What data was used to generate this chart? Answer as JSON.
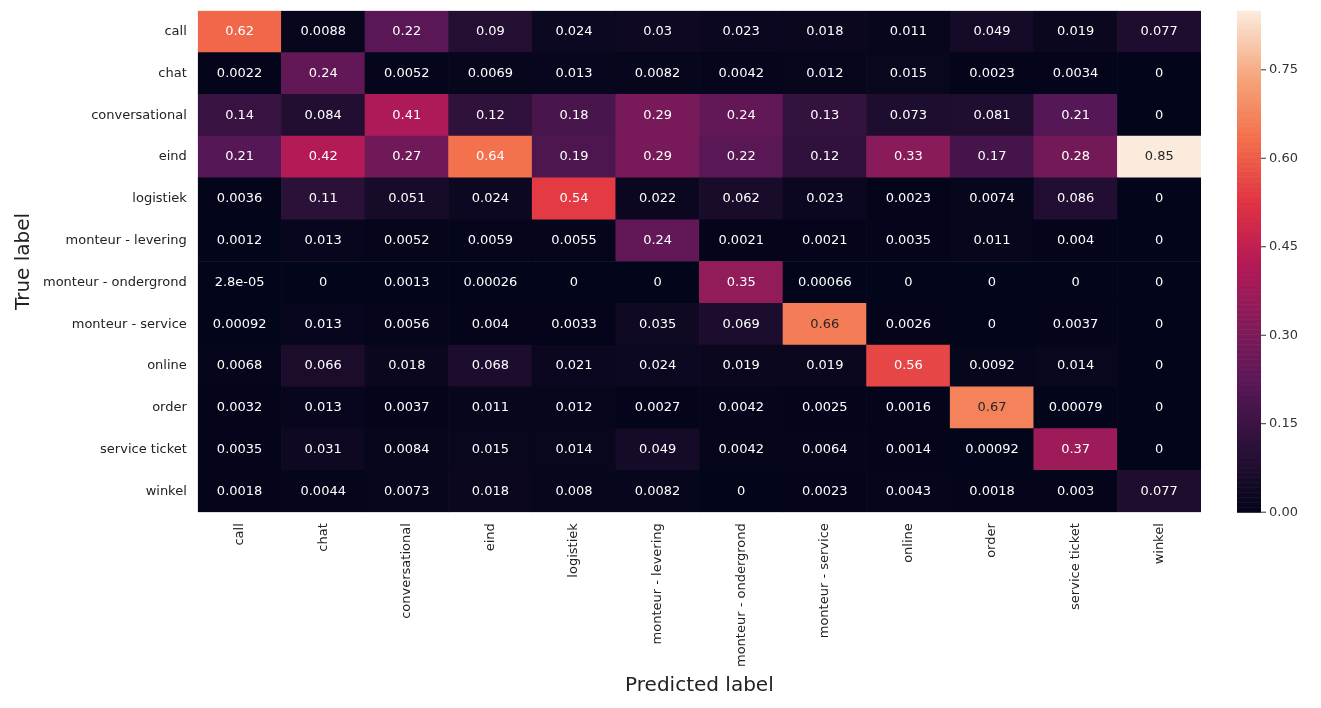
{
  "chart_data": {
    "type": "heatmap",
    "xlabel": "Predicted label",
    "ylabel": "True label",
    "categories": [
      "call",
      "chat",
      "conversational",
      "eind",
      "logistiek",
      "monteur - levering",
      "monteur - ondergrond",
      "monteur - service",
      "online",
      "order",
      "service ticket",
      "winkel"
    ],
    "y_categories": [
      "call",
      "chat",
      "conversational",
      "eind",
      "logistiek",
      "monteur - levering",
      "monteur - ondergrond",
      "monteur - service",
      "online",
      "order",
      "service ticket",
      "winkel"
    ],
    "cells": [
      [
        0.62,
        0.0088,
        0.22,
        0.09,
        0.024,
        0.03,
        0.023,
        0.018,
        0.011,
        0.049,
        0.019,
        0.077
      ],
      [
        0.0022,
        0.24,
        0.0052,
        0.0069,
        0.013,
        0.0082,
        0.0042,
        0.012,
        0.015,
        0.0023,
        0.0034,
        0
      ],
      [
        0.14,
        0.084,
        0.41,
        0.12,
        0.18,
        0.29,
        0.24,
        0.13,
        0.073,
        0.081,
        0.21,
        0
      ],
      [
        0.21,
        0.42,
        0.27,
        0.64,
        0.19,
        0.29,
        0.22,
        0.12,
        0.33,
        0.17,
        0.28,
        0.85
      ],
      [
        0.0036,
        0.11,
        0.051,
        0.024,
        0.54,
        0.022,
        0.062,
        0.023,
        0.0023,
        0.0074,
        0.086,
        0
      ],
      [
        0.0012,
        0.013,
        0.0052,
        0.0059,
        0.0055,
        0.24,
        0.0021,
        0.0021,
        0.0035,
        0.011,
        0.004,
        0
      ],
      [
        2.8e-05,
        0,
        0.0013,
        0.00026,
        0,
        0,
        0.35,
        0.00066,
        0,
        0,
        0,
        0
      ],
      [
        0.00092,
        0.013,
        0.0056,
        0.004,
        0.0033,
        0.035,
        0.069,
        0.66,
        0.0026,
        0,
        0.0037,
        0
      ],
      [
        0.0068,
        0.066,
        0.018,
        0.068,
        0.021,
        0.024,
        0.019,
        0.019,
        0.56,
        0.0092,
        0.014,
        0
      ],
      [
        0.0032,
        0.013,
        0.0037,
        0.011,
        0.012,
        0.0027,
        0.0042,
        0.0025,
        0.0016,
        0.67,
        0.00079,
        0
      ],
      [
        0.0035,
        0.031,
        0.0084,
        0.015,
        0.014,
        0.049,
        0.0042,
        0.0064,
        0.0014,
        0.00092,
        0.37,
        0
      ],
      [
        0.0018,
        0.0044,
        0.0073,
        0.018,
        0.008,
        0.0082,
        0,
        0.0023,
        0.0043,
        0.0018,
        0.003,
        0.077
      ]
    ],
    "cell_labels": [
      [
        "0.62",
        "0.0088",
        "0.22",
        "0.09",
        "0.024",
        "0.03",
        "0.023",
        "0.018",
        "0.011",
        "0.049",
        "0.019",
        "0.077"
      ],
      [
        "0.0022",
        "0.24",
        "0.0052",
        "0.0069",
        "0.013",
        "0.0082",
        "0.0042",
        "0.012",
        "0.015",
        "0.0023",
        "0.0034",
        "0"
      ],
      [
        "0.14",
        "0.084",
        "0.41",
        "0.12",
        "0.18",
        "0.29",
        "0.24",
        "0.13",
        "0.073",
        "0.081",
        "0.21",
        "0"
      ],
      [
        "0.21",
        "0.42",
        "0.27",
        "0.64",
        "0.19",
        "0.29",
        "0.22",
        "0.12",
        "0.33",
        "0.17",
        "0.28",
        "0.85"
      ],
      [
        "0.0036",
        "0.11",
        "0.051",
        "0.024",
        "0.54",
        "0.022",
        "0.062",
        "0.023",
        "0.0023",
        "0.0074",
        "0.086",
        "0"
      ],
      [
        "0.0012",
        "0.013",
        "0.0052",
        "0.0059",
        "0.0055",
        "0.24",
        "0.0021",
        "0.0021",
        "0.0035",
        "0.011",
        "0.004",
        "0"
      ],
      [
        "2.8e-05",
        "0",
        "0.0013",
        "0.00026",
        "0",
        "0",
        "0.35",
        "0.00066",
        "0",
        "0",
        "0",
        "0"
      ],
      [
        "0.00092",
        "0.013",
        "0.0056",
        "0.004",
        "0.0033",
        "0.035",
        "0.069",
        "0.66",
        "0.0026",
        "0",
        "0.0037",
        "0"
      ],
      [
        "0.0068",
        "0.066",
        "0.018",
        "0.068",
        "0.021",
        "0.024",
        "0.019",
        "0.019",
        "0.56",
        "0.0092",
        "0.014",
        "0"
      ],
      [
        "0.0032",
        "0.013",
        "0.0037",
        "0.011",
        "0.012",
        "0.0027",
        "0.0042",
        "0.0025",
        "0.0016",
        "0.67",
        "0.00079",
        "0"
      ],
      [
        "0.0035",
        "0.031",
        "0.0084",
        "0.015",
        "0.014",
        "0.049",
        "0.0042",
        "0.0064",
        "0.0014",
        "0.00092",
        "0.37",
        "0"
      ],
      [
        "0.0018",
        "0.0044",
        "0.0073",
        "0.018",
        "0.008",
        "0.0082",
        "0",
        "0.0023",
        "0.0043",
        "0.0018",
        "0.003",
        "0.077"
      ]
    ],
    "clim": [
      0,
      0.85
    ],
    "cticks": [
      {
        "value": 0,
        "label": "0.00"
      },
      {
        "value": 0.15,
        "label": "0.15"
      },
      {
        "value": 0.3,
        "label": "0.30"
      },
      {
        "value": 0.45,
        "label": "0.45"
      },
      {
        "value": 0.6,
        "label": "0.60"
      },
      {
        "value": 0.75,
        "label": "0.75"
      }
    ]
  }
}
